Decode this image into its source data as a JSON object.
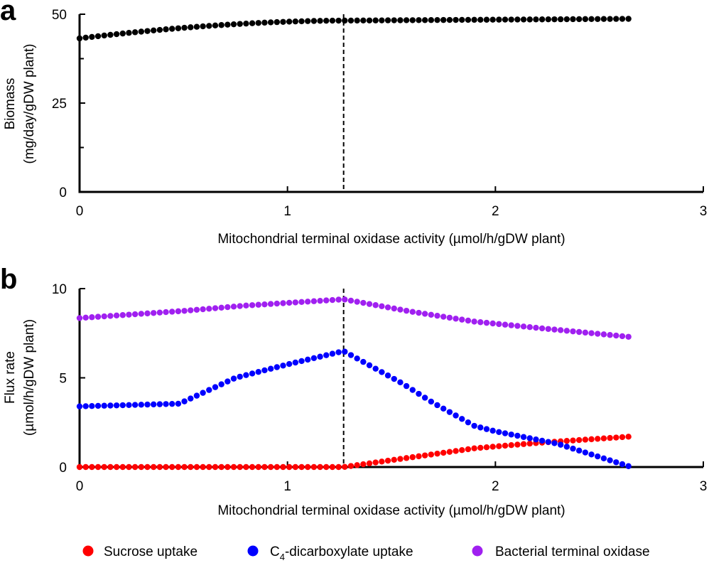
{
  "chart_data": [
    {
      "panel": "a",
      "type": "scatter",
      "xlabel": "Mitochondrial terminal oxidase activity (µmol/h/gDW plant)",
      "ylabel_line1": "Biomass",
      "ylabel_line2": "(mg/day/gDW plant)",
      "xlim": [
        0,
        3
      ],
      "ylim": [
        0,
        50
      ],
      "xticks": [
        "0",
        "1",
        "2",
        "3"
      ],
      "yticks": [
        "0",
        "25",
        "50"
      ],
      "vline_x": 1.27,
      "series": [
        {
          "name": "Biomass",
          "color": "#000000",
          "x_start": 0,
          "x_end": 2.64,
          "n": 90,
          "curve": {
            "y0": 43.2,
            "y_plateau": 48.7,
            "x_knee": 1.27,
            "y_knee": 48.2,
            "shape": "rise-then-plateau"
          }
        }
      ]
    },
    {
      "panel": "b",
      "type": "scatter",
      "xlabel": "Mitochondrial terminal oxidase activity (µmol/h/gDW plant)",
      "ylabel_line1": "Flux rate",
      "ylabel_line2": "(µmol/h/gDW plant)",
      "xlim": [
        0,
        3
      ],
      "ylim": [
        0,
        10
      ],
      "xticks": [
        "0",
        "1",
        "2",
        "3"
      ],
      "yticks": [
        "0",
        "5",
        "10"
      ],
      "vline_x": 1.27,
      "series": [
        {
          "name": "Sucrose uptake",
          "color": "#ff0000",
          "x_start": 0,
          "x_end": 2.64,
          "n": 90,
          "points": [
            [
              0,
              0
            ],
            [
              1.27,
              0
            ],
            [
              1.6,
              0.55
            ],
            [
              1.9,
              1.05
            ],
            [
              2.2,
              1.35
            ],
            [
              2.64,
              1.7
            ]
          ]
        },
        {
          "name": "C4-dicarboxylate uptake",
          "color": "#0000ff",
          "x_start": 0,
          "x_end": 2.64,
          "n": 90,
          "points": [
            [
              0,
              3.4
            ],
            [
              0.48,
              3.55
            ],
            [
              0.75,
              5.0
            ],
            [
              1.0,
              5.75
            ],
            [
              1.27,
              6.5
            ],
            [
              1.55,
              4.7
            ],
            [
              1.7,
              3.6
            ],
            [
              1.9,
              2.3
            ],
            [
              2.0,
              2.0
            ],
            [
              2.3,
              1.3
            ],
            [
              2.64,
              0.05
            ]
          ]
        },
        {
          "name": "Bacterial terminal oxidase",
          "color": "#a020f0",
          "x_start": 0,
          "x_end": 2.64,
          "n": 90,
          "points": [
            [
              0,
              8.35
            ],
            [
              0.5,
              8.75
            ],
            [
              0.8,
              9.05
            ],
            [
              1.27,
              9.4
            ],
            [
              1.6,
              8.7
            ],
            [
              1.9,
              8.15
            ],
            [
              2.2,
              7.8
            ],
            [
              2.64,
              7.3
            ]
          ]
        }
      ]
    }
  ],
  "panel_labels": {
    "a": "a",
    "b": "b"
  },
  "legend": [
    {
      "label_main": "Sucrose uptake",
      "label_sub": "",
      "label_rest": "",
      "color": "#ff0000"
    },
    {
      "label_main": "C",
      "label_sub": "4",
      "label_rest": "-dicarboxylate uptake",
      "color": "#0000ff"
    },
    {
      "label_main": "Bacterial terminal oxidase",
      "label_sub": "",
      "label_rest": "",
      "color": "#a020f0"
    }
  ]
}
